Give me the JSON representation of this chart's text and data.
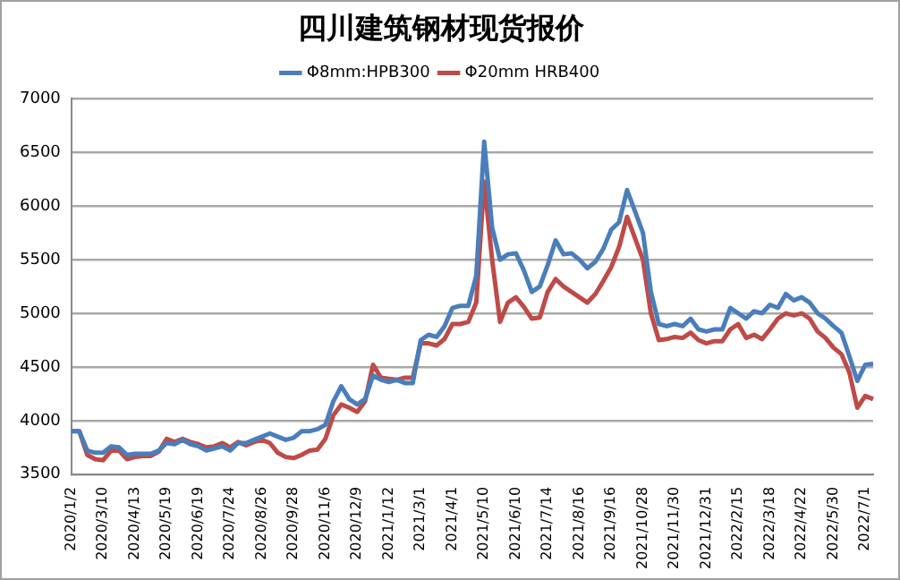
{
  "chart_data": {
    "type": "line",
    "title": "四川建筑钢材现货报价",
    "categories": [
      "2020/1/2",
      null,
      null,
      null,
      "2020/3/10",
      null,
      null,
      null,
      "2020/4/13",
      null,
      null,
      null,
      "2020/5/19",
      null,
      null,
      null,
      "2020/6/19",
      null,
      null,
      null,
      "2020/7/24",
      null,
      null,
      null,
      "2020/8/26",
      null,
      null,
      null,
      "2020/9/28",
      null,
      null,
      null,
      "2020/11/6",
      null,
      null,
      null,
      "2020/12/9",
      null,
      null,
      null,
      "2021/1/12",
      null,
      null,
      null,
      "2021/3/1",
      null,
      null,
      null,
      "2021/4/1",
      null,
      null,
      null,
      "2021/5/10",
      null,
      null,
      null,
      "2021/6/10",
      null,
      null,
      null,
      "2021/7/14",
      null,
      null,
      null,
      "2021/8/16",
      null,
      null,
      null,
      "2021/9/16",
      null,
      null,
      null,
      "2021/10/28",
      null,
      null,
      null,
      "2021/11/30",
      null,
      null,
      null,
      "2021/12/31",
      null,
      null,
      null,
      "2022/2/15",
      null,
      null,
      null,
      "2022/3/18",
      null,
      null,
      null,
      "2022/4/22",
      null,
      null,
      null,
      "2022/5/30",
      null,
      null,
      null,
      "2022/7/1",
      null
    ],
    "series": [
      {
        "name": "Φ8mm:HPB300",
        "color": "#4a7ebb",
        "values": [
          3900,
          3900,
          3720,
          3700,
          3700,
          3760,
          3750,
          3680,
          3690,
          3690,
          3690,
          3720,
          3790,
          3780,
          3820,
          3780,
          3760,
          3720,
          3740,
          3760,
          3720,
          3790,
          3790,
          3820,
          3850,
          3880,
          3850,
          3820,
          3840,
          3900,
          3900,
          3920,
          3960,
          4180,
          4320,
          4200,
          4150,
          4200,
          4420,
          4380,
          4360,
          4380,
          4350,
          4350,
          4750,
          4800,
          4780,
          4880,
          5050,
          5070,
          5070,
          5350,
          6600,
          5800,
          5500,
          5550,
          5560,
          5400,
          5200,
          5250,
          5450,
          5680,
          5550,
          5560,
          5500,
          5420,
          5480,
          5600,
          5780,
          5850,
          6150,
          5950,
          5750,
          5200,
          4900,
          4880,
          4900,
          4880,
          4950,
          4850,
          4830,
          4850,
          4850,
          5050,
          5000,
          4950,
          5020,
          5000,
          5080,
          5050,
          5180,
          5120,
          5150,
          5100,
          5000,
          4950,
          4880,
          4820,
          4600,
          4370,
          4520,
          4530
        ]
      },
      {
        "name": "Φ20mm HRB400",
        "color": "#be4b48",
        "values": [
          3900,
          3900,
          3680,
          3640,
          3630,
          3720,
          3720,
          3640,
          3660,
          3670,
          3670,
          3710,
          3830,
          3800,
          3830,
          3800,
          3780,
          3750,
          3760,
          3790,
          3750,
          3800,
          3770,
          3800,
          3820,
          3790,
          3700,
          3660,
          3650,
          3680,
          3720,
          3730,
          3830,
          4050,
          4150,
          4120,
          4080,
          4180,
          4520,
          4400,
          4390,
          4380,
          4400,
          4400,
          4720,
          4720,
          4700,
          4760,
          4900,
          4900,
          4920,
          5100,
          6230,
          5500,
          4920,
          5100,
          5150,
          5060,
          4950,
          4960,
          5200,
          5320,
          5250,
          5200,
          5150,
          5100,
          5180,
          5300,
          5430,
          5620,
          5900,
          5700,
          5500,
          5000,
          4750,
          4760,
          4780,
          4770,
          4820,
          4750,
          4720,
          4740,
          4740,
          4850,
          4900,
          4770,
          4800,
          4760,
          4850,
          4950,
          5000,
          4980,
          5000,
          4950,
          4830,
          4770,
          4680,
          4620,
          4450,
          4120,
          4230,
          4200
        ]
      }
    ],
    "ylim": [
      3500,
      7000
    ],
    "yticks": [
      3500,
      4000,
      4500,
      5000,
      5500,
      6000,
      6500,
      7000
    ],
    "grid": "y",
    "legend": "top",
    "marker": "none",
    "line_style": "solid"
  }
}
